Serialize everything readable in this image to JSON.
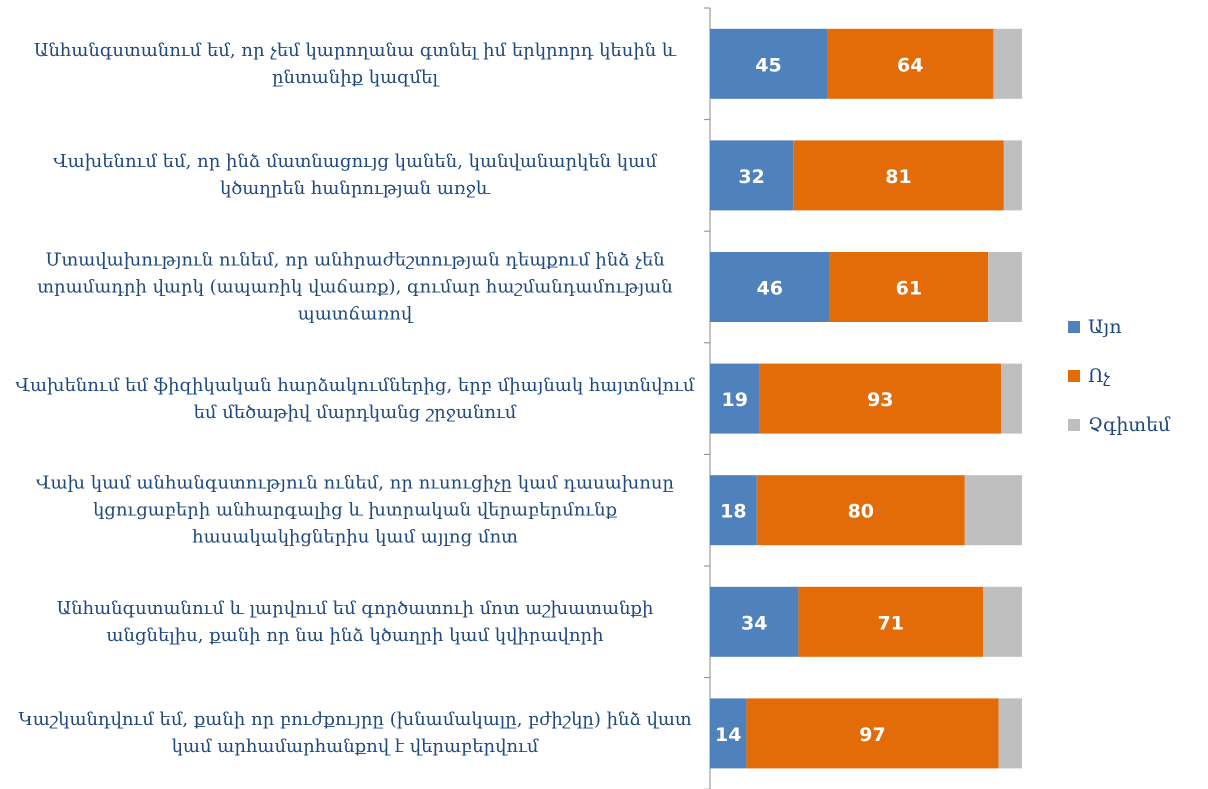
{
  "chart_data": {
    "type": "stacked-barh",
    "categories": [
      "Անհանգստանում եմ, որ չեմ կարողանա գտնել իմ երկրորդ կեսին և ընտանիք կազմել",
      "Վախենում եմ, որ ինձ մատնացույց կանեն, կանվանարկեն կամ կծաղրեն հանրության առջև",
      "Մտավախություն ունեմ, որ անհրաժեշտության դեպքում ինձ չեն տրամադրի վարկ (ապառիկ վաճառք), գումար հաշմանդամության պատճառով",
      "Վախենում եմ ֆիզիկական հարձակումներից, երբ միայնակ հայտնվում եմ մեծաթիվ մարդկանց շրջանում",
      "Վախ կամ անհանգստություն ունեմ, որ ուսուցիչը կամ դասախոսը կցուցաբերի անհարգալից և խտրական վերաբերմունք հասակակիցներիս կամ այլոց մոտ",
      "Անհանգստանում և լարվում եմ գործատուի մոտ աշխատանքի անցնելիս, քանի որ նա ինձ կծաղրի կամ կվիրավորի",
      "Կաշկանդվում եմ, քանի որ բուժքույրը (խնամակալը, բժիշկը) ինձ վատ կամ արհամարհանքով է վերաբերվում"
    ],
    "series": [
      {
        "name": "Այո",
        "color": "#4f81bd",
        "values": [
          45,
          32,
          46,
          19,
          18,
          34,
          14
        ],
        "show_labels": true
      },
      {
        "name": "Ոչ",
        "color": "#e36c09",
        "values": [
          64,
          81,
          61,
          93,
          80,
          71,
          97
        ],
        "show_labels": true
      },
      {
        "name": "Չգիտեմ",
        "color": "#bfbfbf",
        "values": [
          11,
          7,
          13,
          8,
          22,
          15,
          9
        ],
        "show_labels": false
      }
    ],
    "xlim": [
      0,
      120
    ],
    "legend": "right"
  }
}
